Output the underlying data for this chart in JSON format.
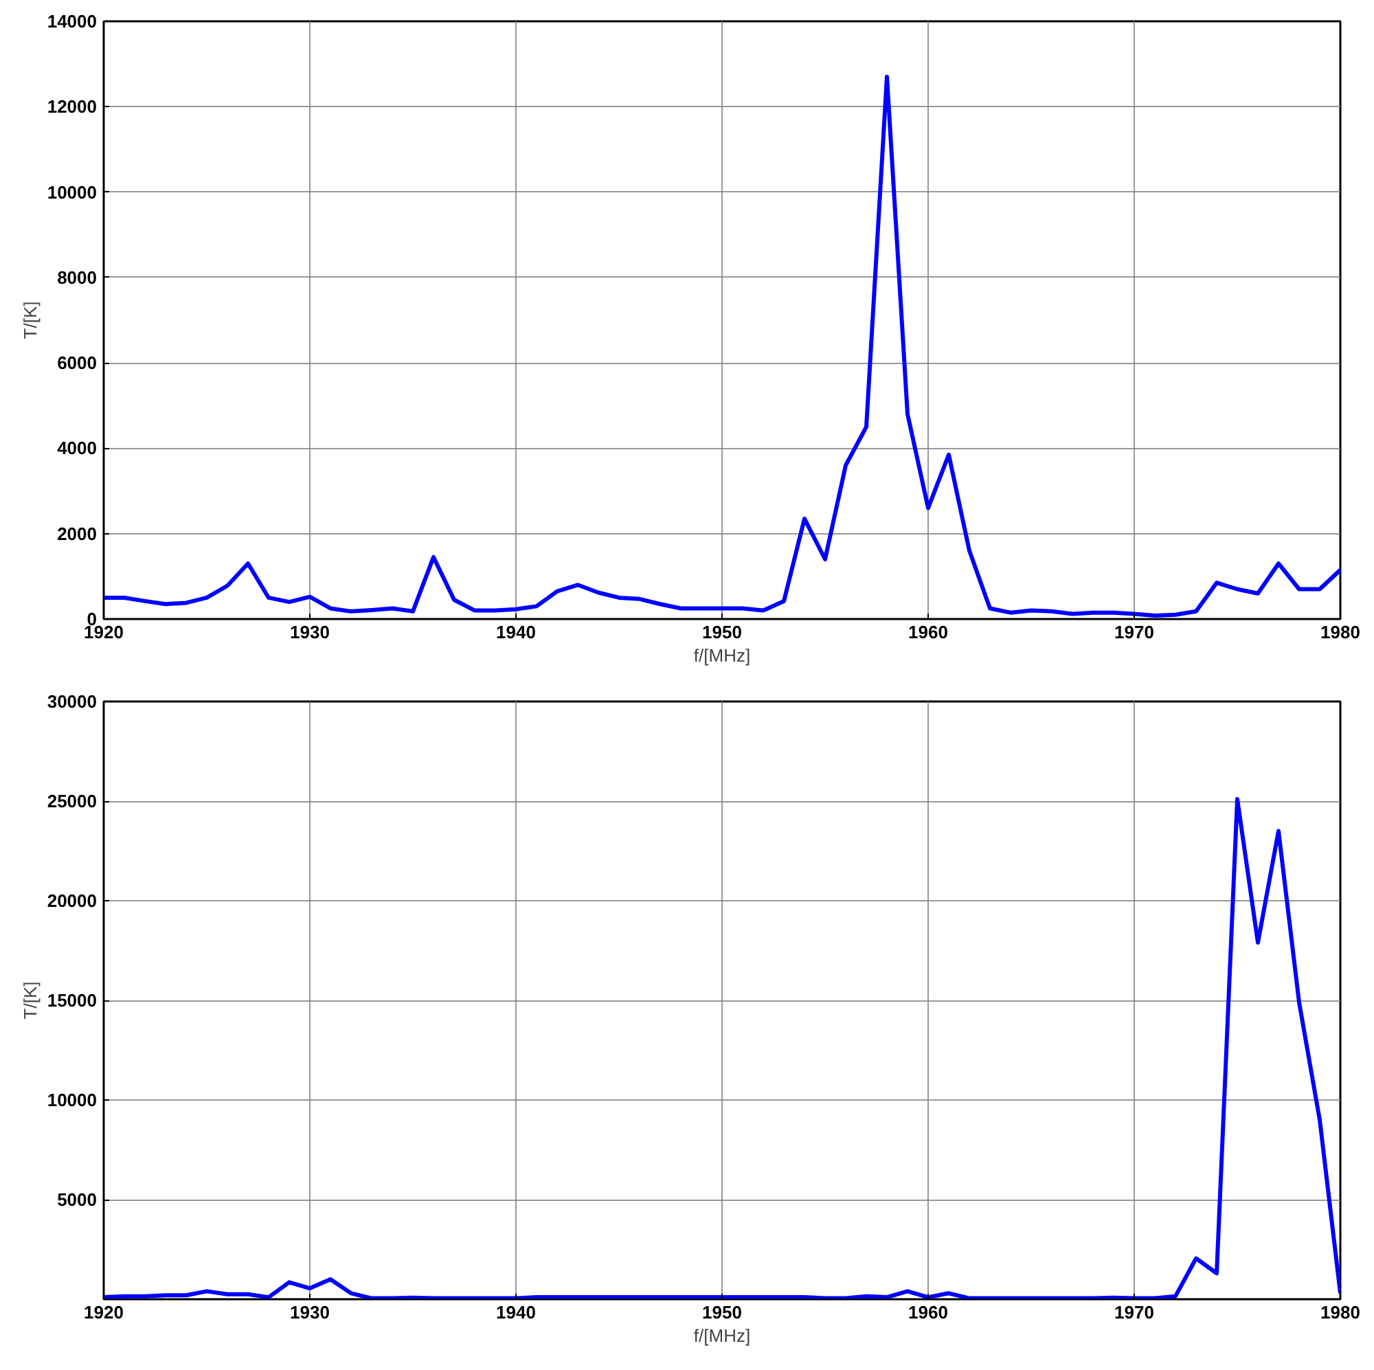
{
  "chart_data": [
    {
      "type": "line",
      "xlabel": "f/[MHz]",
      "ylabel": "T/[K]",
      "xlim": [
        1920,
        1980
      ],
      "xticks": [
        1920,
        1930,
        1940,
        1950,
        1960,
        1970,
        1980
      ],
      "ylim": [
        0,
        14000
      ],
      "yticks": [
        0,
        2000,
        4000,
        6000,
        8000,
        10000,
        12000,
        14000
      ],
      "grid": true,
      "line_style": "solid",
      "marker": "none",
      "x": [
        1920,
        1921,
        1922,
        1923,
        1924,
        1925,
        1926,
        1927,
        1928,
        1929,
        1930,
        1931,
        1932,
        1933,
        1934,
        1935,
        1936,
        1937,
        1938,
        1939,
        1940,
        1941,
        1942,
        1943,
        1944,
        1945,
        1946,
        1947,
        1948,
        1949,
        1950,
        1951,
        1952,
        1953,
        1954,
        1955,
        1956,
        1957,
        1958,
        1959,
        1960,
        1961,
        1962,
        1963,
        1964,
        1965,
        1966,
        1967,
        1968,
        1969,
        1970,
        1971,
        1972,
        1973,
        1974,
        1975,
        1976,
        1977,
        1978,
        1979,
        1980
      ],
      "series": [
        {
          "color": "#0000ff",
          "values": [
            500,
            500,
            420,
            350,
            380,
            500,
            780,
            1300,
            500,
            400,
            520,
            250,
            180,
            210,
            250,
            180,
            1450,
            450,
            200,
            200,
            230,
            300,
            650,
            800,
            620,
            500,
            470,
            350,
            250,
            250,
            250,
            250,
            200,
            420,
            2350,
            1400,
            3600,
            4500,
            12700,
            4800,
            2600,
            3850,
            1600,
            250,
            150,
            200,
            180,
            120,
            150,
            150,
            120,
            80,
            100,
            180,
            850,
            700,
            600,
            1300,
            700,
            700,
            1150
          ]
        }
      ]
    },
    {
      "type": "line",
      "xlabel": "f/[MHz]",
      "ylabel": "T/[K]",
      "xlim": [
        1920,
        1980
      ],
      "xticks": [
        1920,
        1930,
        1940,
        1950,
        1960,
        1970,
        1980
      ],
      "ylim": [
        0,
        30000
      ],
      "yticks": [
        {
          "value": 0,
          "label": null
        },
        5000,
        10000,
        15000,
        20000,
        25000,
        30000
      ],
      "grid": true,
      "line_style": "solid",
      "marker": "none",
      "x": [
        1920,
        1921,
        1922,
        1923,
        1924,
        1925,
        1926,
        1927,
        1928,
        1929,
        1930,
        1931,
        1932,
        1933,
        1934,
        1935,
        1936,
        1937,
        1938,
        1939,
        1940,
        1941,
        1942,
        1943,
        1944,
        1945,
        1946,
        1947,
        1948,
        1949,
        1950,
        1951,
        1952,
        1953,
        1954,
        1955,
        1956,
        1957,
        1958,
        1959,
        1960,
        1961,
        1962,
        1963,
        1964,
        1965,
        1966,
        1967,
        1968,
        1969,
        1970,
        1971,
        1972,
        1973,
        1974,
        1975,
        1976,
        1977,
        1978,
        1979,
        1980
      ],
      "series": [
        {
          "color": "#0000ff",
          "values": [
            100,
            150,
            150,
            200,
            200,
            400,
            250,
            250,
            100,
            850,
            550,
            1000,
            300,
            50,
            50,
            80,
            50,
            50,
            50,
            50,
            50,
            100,
            100,
            100,
            100,
            100,
            100,
            100,
            100,
            100,
            100,
            100,
            100,
            100,
            100,
            50,
            50,
            150,
            100,
            400,
            100,
            300,
            50,
            50,
            50,
            50,
            50,
            50,
            50,
            80,
            50,
            50,
            150,
            2050,
            1300,
            25100,
            17900,
            23500,
            14900,
            9000,
            300
          ]
        }
      ]
    }
  ]
}
